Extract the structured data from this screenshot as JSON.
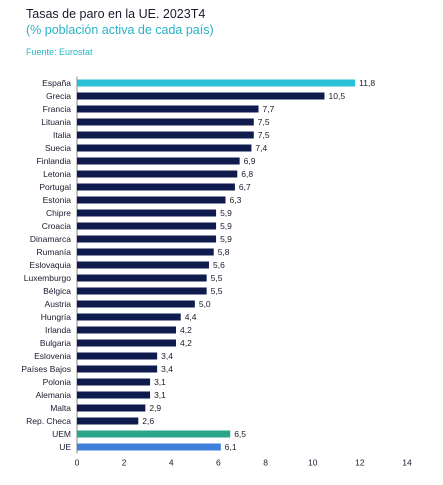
{
  "title": "Tasas de paro en la UE. 2023T4",
  "subtitle": "(% población activa de cada país)",
  "source": "Fuente: Eurostat",
  "colors": {
    "default": "#0f1b4c",
    "highlight_spain": "#29c1d6",
    "uem": "#2aa58a",
    "ue": "#3f7fdc",
    "axis": "#8a8a8a"
  },
  "chart_data": {
    "type": "bar",
    "orientation": "horizontal",
    "title": "Tasas de paro en la UE. 2023T4",
    "subtitle": "(% población activa de cada país)",
    "categories": [
      "España",
      "Grecia",
      "Francia",
      "Lituania",
      "Italia",
      "Suecia",
      "Finlandia",
      "Letonia",
      "Portugal",
      "Estonia",
      "Chipre",
      "Croacia",
      "Dinamarca",
      "Rumanía",
      "Eslovaquia",
      "Luxemburgo",
      "Bélgica",
      "Austria",
      "Hungría",
      "Irlanda",
      "Bulgaria",
      "Eslovenia",
      "Países Bajos",
      "Polonia",
      "Alemania",
      "Malta",
      "Rep. Checa",
      "UEM",
      "UE"
    ],
    "values": [
      11.8,
      10.5,
      7.7,
      7.5,
      7.5,
      7.4,
      6.9,
      6.8,
      6.7,
      6.3,
      5.9,
      5.9,
      5.9,
      5.8,
      5.6,
      5.5,
      5.5,
      5.0,
      4.4,
      4.2,
      4.2,
      3.4,
      3.4,
      3.1,
      3.1,
      2.9,
      2.6,
      6.5,
      6.1
    ],
    "value_labels": [
      "11,8",
      "10,5",
      "7,7",
      "7,5",
      "7,5",
      "7,4",
      "6,9",
      "6,8",
      "6,7",
      "6,3",
      "5,9",
      "5,9",
      "5,9",
      "5,8",
      "5,6",
      "5,5",
      "5,5",
      "5,0",
      "4,4",
      "4,2",
      "4,2",
      "3,4",
      "3,4",
      "3,1",
      "3,1",
      "2,9",
      "2,6",
      "6,5",
      "6,1"
    ],
    "bar_colors": [
      "highlight_spain",
      "default",
      "default",
      "default",
      "default",
      "default",
      "default",
      "default",
      "default",
      "default",
      "default",
      "default",
      "default",
      "default",
      "default",
      "default",
      "default",
      "default",
      "default",
      "default",
      "default",
      "default",
      "default",
      "default",
      "default",
      "default",
      "default",
      "uem",
      "ue"
    ],
    "xlim": [
      0,
      14
    ],
    "xticks": [
      0,
      2,
      4,
      6,
      8,
      10,
      12,
      14
    ],
    "xlabel": "",
    "ylabel": "",
    "grid": false,
    "legend": "none"
  }
}
